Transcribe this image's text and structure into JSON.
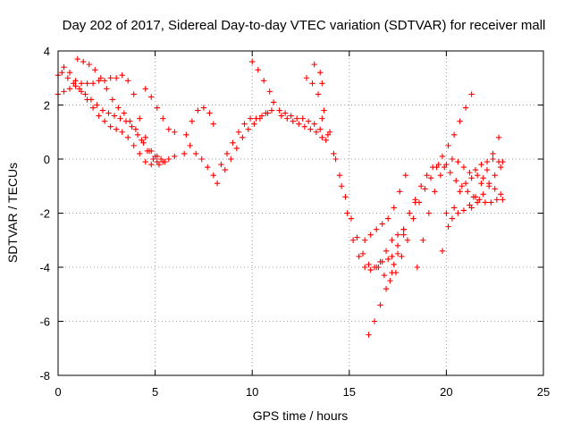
{
  "chart_data": {
    "type": "scatter",
    "title": "Day 202 of 2017, Sidereal Day-to-day VTEC variation (SDTVAR) for receiver mall",
    "xlabel": "GPS time / hours",
    "ylabel": "SDTVAR / TECUs",
    "xlim": [
      0,
      25
    ],
    "ylim": [
      -8,
      4
    ],
    "xticks": [
      "0",
      "5",
      "10",
      "15",
      "20",
      "25"
    ],
    "yticks": [
      "4",
      "2",
      "0",
      "-2",
      "-4",
      "-6",
      "-8"
    ],
    "grid": true,
    "marker": "+",
    "color": "#ff0000",
    "series": [
      {
        "x": [
          0.0,
          0.3,
          0.6,
          0.9,
          1.2,
          1.5,
          1.8,
          2.1,
          2.4,
          2.7,
          3.0,
          3.3,
          3.6,
          3.9,
          4.2,
          4.5,
          4.8,
          5.1,
          5.4,
          5.7,
          6.0
        ],
        "y": [
          3.1,
          3.4,
          3.2,
          2.9,
          2.5,
          2.2,
          1.9,
          1.6,
          1.4,
          1.2,
          1.1,
          1.0,
          0.8,
          0.5,
          0.2,
          -0.1,
          -0.2,
          -0.1,
          -0.1,
          0.0,
          0.1
        ]
      },
      {
        "x": [
          0.0,
          0.3,
          0.6,
          0.9,
          1.2,
          1.5,
          1.8,
          2.1,
          2.4,
          2.7,
          3.0,
          3.3,
          3.6,
          3.9,
          4.2,
          4.5,
          4.8,
          5.1
        ],
        "y": [
          2.4,
          2.5,
          2.6,
          2.7,
          2.8,
          2.8,
          2.8,
          2.9,
          2.9,
          3.0,
          3.0,
          3.1,
          2.9,
          2.4,
          1.5,
          0.8,
          0.3,
          0.1
        ]
      },
      {
        "x": [
          0.2,
          0.5,
          0.8,
          1.1,
          1.4,
          1.7,
          2.0,
          2.3,
          2.6,
          2.9,
          3.2,
          3.5,
          3.8,
          4.1,
          4.4,
          4.7,
          5.0,
          5.3
        ],
        "y": [
          3.2,
          3.0,
          2.8,
          2.6,
          2.4,
          2.2,
          2.0,
          1.8,
          1.7,
          1.6,
          1.5,
          1.4,
          1.2,
          0.9,
          0.6,
          0.3,
          0.1,
          0.0
        ]
      },
      {
        "x": [
          1.0,
          1.3,
          1.6,
          1.9,
          2.2,
          2.5,
          2.8,
          3.1,
          3.4,
          3.7,
          4.0,
          4.3,
          4.6,
          4.9,
          5.2,
          5.5
        ],
        "y": [
          3.7,
          3.6,
          3.5,
          3.3,
          3.0,
          2.6,
          2.2,
          1.9,
          1.7,
          1.4,
          1.1,
          0.7,
          0.3,
          0.0,
          -0.2,
          -0.1
        ]
      },
      {
        "x": [
          4.5,
          4.8,
          5.1,
          5.4,
          5.7,
          6.0
        ],
        "y": [
          2.6,
          2.3,
          1.9,
          1.5,
          1.1,
          1.0
        ]
      },
      {
        "x": [
          6.5,
          6.8,
          7.1,
          7.4,
          7.7,
          8.0,
          8.2
        ],
        "y": [
          0.2,
          0.5,
          0.2,
          0.0,
          -0.3,
          -0.6,
          -0.9
        ]
      },
      {
        "x": [
          6.6,
          6.9,
          7.2,
          7.5,
          7.8,
          8.0
        ],
        "y": [
          0.9,
          1.4,
          1.8,
          1.9,
          1.7,
          1.3
        ]
      },
      {
        "x": [
          8.6,
          8.9,
          9.2,
          9.5,
          9.8,
          10.1,
          10.4,
          10.7,
          11.0
        ],
        "y": [
          -0.4,
          0.0,
          0.4,
          0.8,
          1.1,
          1.3,
          1.5,
          1.7,
          1.8
        ]
      },
      {
        "x": [
          8.4,
          8.7,
          9.0,
          9.3,
          9.6,
          9.9,
          10.2,
          10.5,
          10.8
        ],
        "y": [
          -0.2,
          0.2,
          0.6,
          1.0,
          1.3,
          1.5,
          1.5,
          1.6,
          1.7
        ]
      },
      {
        "x": [
          10.0,
          10.3,
          10.6,
          10.9,
          11.1
        ],
        "y": [
          3.6,
          3.3,
          2.9,
          2.5,
          2.1
        ]
      },
      {
        "x": [
          11.5,
          11.8,
          12.1,
          12.4,
          12.7,
          13.0,
          13.3,
          13.6,
          13.8
        ],
        "y": [
          1.6,
          1.5,
          1.4,
          1.3,
          1.2,
          1.1,
          1.0,
          0.8,
          0.7
        ]
      },
      {
        "x": [
          11.4,
          11.7,
          12.0,
          12.3,
          12.6,
          12.9,
          13.2,
          13.5
        ],
        "y": [
          1.8,
          1.7,
          1.6,
          1.5,
          1.5,
          1.4,
          1.3,
          1.1
        ]
      },
      {
        "x": [
          13.2,
          13.5,
          13.6
        ],
        "y": [
          3.5,
          3.2,
          2.8
        ]
      },
      {
        "x": [
          12.8,
          13.1,
          13.4,
          13.7,
          14.0,
          14.3,
          14.6,
          14.9,
          15.2,
          15.5,
          15.8,
          16.1,
          16.4,
          16.7,
          17.0,
          17.3
        ],
        "y": [
          3.0,
          2.8,
          2.4,
          1.8,
          1.0,
          0.0,
          -1.0,
          -2.0,
          -3.0,
          -3.6,
          -4.0,
          -4.1,
          -4.0,
          -3.8,
          -3.7,
          -3.9
        ]
      },
      {
        "x": [
          13.6,
          13.9,
          14.2,
          14.5,
          14.8,
          15.1,
          15.4,
          15.7,
          16.0,
          16.3,
          16.6,
          16.9,
          17.2,
          17.5,
          17.8
        ],
        "y": [
          1.5,
          0.9,
          0.2,
          -0.6,
          -1.4,
          -2.2,
          -2.9,
          -3.5,
          -3.9,
          -4.0,
          -3.8,
          -3.4,
          -3.0,
          -2.8,
          -2.6
        ]
      },
      {
        "x": [
          15.8,
          16.1,
          16.4,
          16.7,
          17.0,
          17.3,
          17.6,
          17.9
        ],
        "y": [
          -3.0,
          -2.8,
          -2.6,
          -2.4,
          -2.2,
          -1.8,
          -1.2,
          -0.6
        ]
      },
      {
        "x": [
          16.0,
          16.3,
          16.6,
          16.9,
          17.2,
          17.5,
          17.8,
          18.1,
          18.4
        ],
        "y": [
          -6.5,
          -6.0,
          -5.4,
          -4.8,
          -4.2,
          -3.5,
          -2.8,
          -2.0,
          -1.6
        ]
      },
      {
        "x": [
          16.5,
          16.8,
          17.1,
          17.4,
          17.7,
          18.0,
          18.3,
          18.6,
          18.9,
          19.2,
          19.5,
          19.8,
          20.1,
          20.4,
          20.7,
          21.0,
          21.3
        ],
        "y": [
          -4.0,
          -4.3,
          -4.5,
          -4.2,
          -3.6,
          -3.0,
          -2.2,
          -1.6,
          -1.1,
          -0.7,
          -0.3,
          0.1,
          0.5,
          0.9,
          1.4,
          1.9,
          2.4
        ]
      },
      {
        "x": [
          17.2,
          17.5,
          17.8,
          18.1,
          18.4,
          18.7,
          19.0,
          19.3,
          19.6,
          19.9,
          20.2,
          20.5,
          20.8,
          21.1,
          21.4,
          21.7,
          22.0,
          22.3,
          22.6,
          22.9
        ],
        "y": [
          -3.6,
          -3.2,
          -2.6,
          -2.0,
          -1.5,
          -1.0,
          -0.6,
          -0.3,
          -0.2,
          -0.3,
          -0.5,
          -0.8,
          -1.0,
          -1.2,
          -1.4,
          -1.5,
          -1.6,
          -1.6,
          -1.5,
          -1.5
        ]
      },
      {
        "x": [
          18.5,
          18.8,
          19.1,
          19.4,
          19.7,
          20.0,
          20.3,
          20.6,
          20.9,
          21.2,
          21.5,
          21.8,
          22.1,
          22.4,
          22.7
        ],
        "y": [
          -4.0,
          -3.0,
          -2.0,
          -1.2,
          -0.6,
          -0.2,
          0.0,
          -0.1,
          -0.3,
          -0.5,
          -0.4,
          -0.2,
          -0.1,
          0.0,
          -0.1
        ]
      },
      {
        "x": [
          19.8,
          20.1,
          20.4,
          20.7,
          21.0,
          21.3,
          21.6,
          21.9,
          22.2,
          22.5,
          22.8
        ],
        "y": [
          -3.4,
          -2.5,
          -1.8,
          -1.2,
          -0.9,
          -0.7,
          -0.6,
          -0.7,
          -0.9,
          -1.1,
          -1.3
        ]
      },
      {
        "x": [
          20.0,
          20.3,
          20.6,
          20.9,
          21.2,
          21.5,
          21.8,
          22.1,
          22.4,
          22.7
        ],
        "y": [
          -2.0,
          -2.2,
          -2.0,
          -1.9,
          -1.7,
          -1.4,
          -0.9,
          -0.4,
          0.2,
          0.8
        ]
      },
      {
        "x": [
          21.3,
          21.6,
          21.9,
          22.2,
          22.5,
          22.8,
          22.9
        ],
        "y": [
          -1.8,
          -1.6,
          -1.3,
          -1.0,
          -0.6,
          -0.3,
          -0.1
        ]
      }
    ]
  }
}
